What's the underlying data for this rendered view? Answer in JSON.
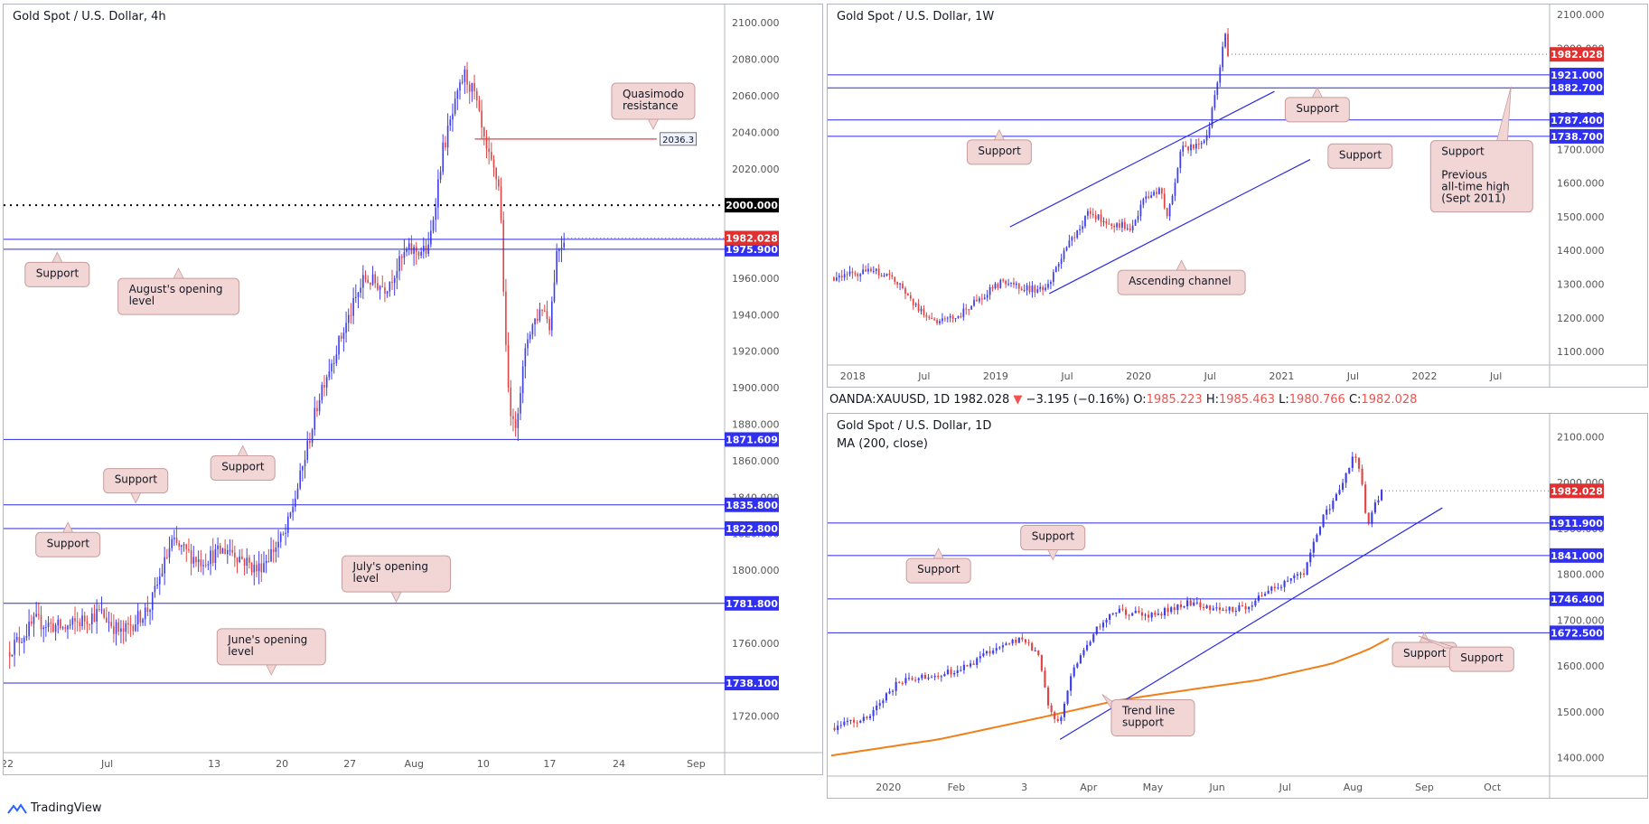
{
  "colors": {
    "up": "#3f3fe8",
    "down": "#e04545",
    "level": "#2a2ae0",
    "tagLevel": "#3030f0",
    "tagPrice": "#e03030",
    "tagBlack": "#000000",
    "callout": "#f2d6d6",
    "calloutBorder": "#c79c9c",
    "ma": "#f07f1a",
    "axisText": "#555555",
    "gridLine": "#e8e8e8"
  },
  "footer": {
    "brand": "TradingView",
    "icon": "tradingview-logo-icon"
  },
  "ohlc": {
    "symbol": "OANDA:XAUUSD, 1D",
    "last": "1982.028",
    "arrow": "▼",
    "change": "−3.195 (−0.16%)",
    "o_label": "O:",
    "o": "1985.223",
    "h_label": "H:",
    "h": "1985.463",
    "l_label": "L:",
    "l": "1980.766",
    "c_label": "C:",
    "c": "1982.028"
  },
  "charts": [
    {
      "id": "h4",
      "title": "Gold Spot / U.S. Dollar, 4h",
      "subtitle": "",
      "ylim": [
        1700,
        2110
      ],
      "yticks": [
        1720,
        1740,
        1760,
        1780,
        1800,
        1820,
        1840,
        1860,
        1880,
        1900,
        1920,
        1940,
        1960,
        1980,
        2000,
        2020,
        2040,
        2060,
        2080,
        2100
      ],
      "xticks": [
        {
          "label": "22",
          "f": 0.0
        },
        {
          "label": "Jul",
          "f": 0.14
        },
        {
          "label": "13",
          "f": 0.29
        },
        {
          "label": "20",
          "f": 0.385
        },
        {
          "label": "27",
          "f": 0.48
        },
        {
          "label": "Aug",
          "f": 0.57
        },
        {
          "label": "10",
          "f": 0.667
        },
        {
          "label": "17",
          "f": 0.76
        },
        {
          "label": "24",
          "f": 0.857
        },
        {
          "label": "Sep",
          "f": 0.965
        }
      ],
      "path": [
        {
          "f": 0.0,
          "v": 1755
        },
        {
          "f": 0.04,
          "v": 1772
        },
        {
          "f": 0.08,
          "v": 1768
        },
        {
          "f": 0.13,
          "v": 1777
        },
        {
          "f": 0.16,
          "v": 1765
        },
        {
          "f": 0.2,
          "v": 1780
        },
        {
          "f": 0.23,
          "v": 1815
        },
        {
          "f": 0.27,
          "v": 1805
        },
        {
          "f": 0.31,
          "v": 1812
        },
        {
          "f": 0.35,
          "v": 1800
        },
        {
          "f": 0.39,
          "v": 1820
        },
        {
          "f": 0.41,
          "v": 1850
        },
        {
          "f": 0.44,
          "v": 1900
        },
        {
          "f": 0.48,
          "v": 1940
        },
        {
          "f": 0.5,
          "v": 1960
        },
        {
          "f": 0.53,
          "v": 1955
        },
        {
          "f": 0.56,
          "v": 1975
        },
        {
          "f": 0.59,
          "v": 1975
        },
        {
          "f": 0.61,
          "v": 2030
        },
        {
          "f": 0.64,
          "v": 2072
        },
        {
          "f": 0.655,
          "v": 2060
        },
        {
          "f": 0.67,
          "v": 2030
        },
        {
          "f": 0.69,
          "v": 2010
        },
        {
          "f": 0.7,
          "v": 1905
        },
        {
          "f": 0.71,
          "v": 1875
        },
        {
          "f": 0.73,
          "v": 1930
        },
        {
          "f": 0.75,
          "v": 1945
        },
        {
          "f": 0.76,
          "v": 1935
        },
        {
          "f": 0.77,
          "v": 1975
        },
        {
          "f": 0.78,
          "v": 1982
        }
      ],
      "levels": [
        {
          "v": 1981.3,
          "tag": "1981.300",
          "kind": "level",
          "from": 0.0
        },
        {
          "v": 1975.9,
          "tag": "1975.900",
          "kind": "level",
          "from": 0.0
        },
        {
          "v": 1871.609,
          "tag": "1871.609",
          "kind": "level",
          "from": 0.0
        },
        {
          "v": 1835.8,
          "tag": "1835.800",
          "kind": "level",
          "from": 0.0
        },
        {
          "v": 1822.8,
          "tag": "1822.800",
          "kind": "level",
          "from": 0.0
        },
        {
          "v": 1781.8,
          "tag": "1781.800",
          "kind": "level",
          "from": 0.0
        },
        {
          "v": 1738.1,
          "tag": "1738.100",
          "kind": "level",
          "from": 0.0
        },
        {
          "v": 2036.3,
          "tag": "",
          "kind": "red",
          "from": 0.655,
          "to": 0.91
        },
        {
          "v": 2000,
          "tag": "2000.000",
          "kind": "dotted",
          "from": 0.0
        }
      ],
      "price": {
        "v": 1982.028,
        "tag": "1982.028"
      },
      "smallTag": {
        "label": "2036.3",
        "v": 2036.3,
        "f": 0.94
      },
      "callouts": [
        {
          "text": [
            "Support"
          ],
          "f": 0.07,
          "v": 1962,
          "ptr": "up"
        },
        {
          "text": [
            "August's opening",
            "level"
          ],
          "f": 0.24,
          "v": 1950,
          "ptr": "up"
        },
        {
          "text": [
            "Quasimodo",
            "resistance"
          ],
          "f": 0.905,
          "v": 2057,
          "ptr": "down"
        },
        {
          "text": [
            "Support"
          ],
          "f": 0.33,
          "v": 1856,
          "ptr": "up"
        },
        {
          "text": [
            "Support"
          ],
          "f": 0.18,
          "v": 1849,
          "ptr": "down"
        },
        {
          "text": [
            "Support"
          ],
          "f": 0.085,
          "v": 1814,
          "ptr": "up"
        },
        {
          "text": [
            "July's opening",
            "level"
          ],
          "f": 0.545,
          "v": 1798,
          "ptr": "down"
        },
        {
          "text": [
            "June's opening",
            "level"
          ],
          "f": 0.37,
          "v": 1758,
          "ptr": "down"
        }
      ]
    },
    {
      "id": "w1",
      "title": "Gold Spot / U.S. Dollar, 1W",
      "subtitle": "",
      "ylim": [
        1060,
        2130
      ],
      "yticks": [
        1100,
        1200,
        1300,
        1400,
        1500,
        1600,
        1700,
        1800,
        1900,
        2000,
        2100
      ],
      "xticks": [
        {
          "label": "2018",
          "f": 0.03
        },
        {
          "label": "Jul",
          "f": 0.13
        },
        {
          "label": "2019",
          "f": 0.23
        },
        {
          "label": "Jul",
          "f": 0.33
        },
        {
          "label": "2020",
          "f": 0.43
        },
        {
          "label": "Jul",
          "f": 0.53
        },
        {
          "label": "2021",
          "f": 0.63
        },
        {
          "label": "Jul",
          "f": 0.73
        },
        {
          "label": "2022",
          "f": 0.83
        },
        {
          "label": "Jul",
          "f": 0.93
        }
      ],
      "path": [
        {
          "f": 0.0,
          "v": 1320
        },
        {
          "f": 0.03,
          "v": 1330
        },
        {
          "f": 0.06,
          "v": 1340
        },
        {
          "f": 0.09,
          "v": 1310
        },
        {
          "f": 0.12,
          "v": 1230
        },
        {
          "f": 0.15,
          "v": 1185
        },
        {
          "f": 0.18,
          "v": 1210
        },
        {
          "f": 0.21,
          "v": 1260
        },
        {
          "f": 0.24,
          "v": 1310
        },
        {
          "f": 0.27,
          "v": 1290
        },
        {
          "f": 0.3,
          "v": 1280
        },
        {
          "f": 0.33,
          "v": 1410
        },
        {
          "f": 0.36,
          "v": 1510
        },
        {
          "f": 0.39,
          "v": 1480
        },
        {
          "f": 0.42,
          "v": 1470
        },
        {
          "f": 0.44,
          "v": 1560
        },
        {
          "f": 0.46,
          "v": 1580
        },
        {
          "f": 0.47,
          "v": 1500
        },
        {
          "f": 0.49,
          "v": 1700
        },
        {
          "f": 0.52,
          "v": 1720
        },
        {
          "f": 0.53,
          "v": 1780
        },
        {
          "f": 0.545,
          "v": 1960
        },
        {
          "f": 0.55,
          "v": 2060
        },
        {
          "f": 0.555,
          "v": 1982
        }
      ],
      "levels": [
        {
          "v": 1921,
          "tag": "1921.000",
          "kind": "level",
          "from": 0.0
        },
        {
          "v": 1882.7,
          "tag": "1882.700",
          "kind": "level",
          "from": 0.0
        },
        {
          "v": 1787.4,
          "tag": "1787.400",
          "kind": "level",
          "from": 0.0
        },
        {
          "v": 1738.7,
          "tag": "1738.700",
          "kind": "level",
          "from": 0.0
        }
      ],
      "price": {
        "v": 1982.028,
        "tag": "1982.028"
      },
      "trendlines": [
        {
          "f1": 0.25,
          "v1": 1470,
          "f2": 0.62,
          "v2": 1872,
          "color": "#2a2ae0"
        },
        {
          "f1": 0.305,
          "v1": 1272,
          "f2": 0.67,
          "v2": 1670,
          "color": "#2a2ae0"
        }
      ],
      "callouts": [
        {
          "text": [
            "Support"
          ],
          "f": 0.68,
          "v": 1818,
          "ptr": "up"
        },
        {
          "text": [
            "Support"
          ],
          "f": 0.235,
          "v": 1692,
          "ptr": "up"
        },
        {
          "text": [
            "Support"
          ],
          "f": 0.74,
          "v": 1680,
          "ptr": "none"
        },
        {
          "text": [
            "Support",
            "",
            "Previous",
            "all-time high",
            "(Sept 2011)"
          ],
          "f": 0.91,
          "v": 1620,
          "ptr": "upright"
        },
        {
          "text": [
            "Ascending channel"
          ],
          "f": 0.49,
          "v": 1305,
          "ptr": "up"
        }
      ]
    },
    {
      "id": "d1",
      "title": "Gold Spot / U.S. Dollar, 1D",
      "subtitle": "MA (200, close)",
      "ylim": [
        1360,
        2150
      ],
      "yticks": [
        1400,
        1500,
        1600,
        1700,
        1800,
        1900,
        2000,
        2100
      ],
      "xticks": [
        {
          "label": "2020",
          "f": 0.08
        },
        {
          "label": "Feb",
          "f": 0.175
        },
        {
          "label": "3",
          "f": 0.27
        },
        {
          "label": "Apr",
          "f": 0.36
        },
        {
          "label": "May",
          "f": 0.45
        },
        {
          "label": "Jun",
          "f": 0.54
        },
        {
          "label": "Jul",
          "f": 0.635
        },
        {
          "label": "Aug",
          "f": 0.73
        },
        {
          "label": "Sep",
          "f": 0.83
        },
        {
          "label": "Oct",
          "f": 0.925
        }
      ],
      "path": [
        {
          "f": 0.0,
          "v": 1465
        },
        {
          "f": 0.05,
          "v": 1485
        },
        {
          "f": 0.09,
          "v": 1560
        },
        {
          "f": 0.12,
          "v": 1575
        },
        {
          "f": 0.18,
          "v": 1590
        },
        {
          "f": 0.23,
          "v": 1640
        },
        {
          "f": 0.27,
          "v": 1660
        },
        {
          "f": 0.29,
          "v": 1620
        },
        {
          "f": 0.305,
          "v": 1500
        },
        {
          "f": 0.32,
          "v": 1480
        },
        {
          "f": 0.34,
          "v": 1600
        },
        {
          "f": 0.37,
          "v": 1680
        },
        {
          "f": 0.4,
          "v": 1720
        },
        {
          "f": 0.45,
          "v": 1710
        },
        {
          "f": 0.5,
          "v": 1740
        },
        {
          "f": 0.55,
          "v": 1720
        },
        {
          "f": 0.58,
          "v": 1730
        },
        {
          "f": 0.62,
          "v": 1770
        },
        {
          "f": 0.66,
          "v": 1800
        },
        {
          "f": 0.69,
          "v": 1930
        },
        {
          "f": 0.71,
          "v": 1980
        },
        {
          "f": 0.73,
          "v": 2060
        },
        {
          "f": 0.74,
          "v": 2030
        },
        {
          "f": 0.75,
          "v": 1905
        },
        {
          "f": 0.76,
          "v": 1950
        },
        {
          "f": 0.77,
          "v": 1982
        }
      ],
      "ma": [
        {
          "f": 0.0,
          "v": 1405
        },
        {
          "f": 0.15,
          "v": 1440
        },
        {
          "f": 0.3,
          "v": 1490
        },
        {
          "f": 0.4,
          "v": 1525
        },
        {
          "f": 0.5,
          "v": 1548
        },
        {
          "f": 0.6,
          "v": 1570
        },
        {
          "f": 0.7,
          "v": 1605
        },
        {
          "f": 0.75,
          "v": 1635
        },
        {
          "f": 0.78,
          "v": 1660
        }
      ],
      "levels": [
        {
          "v": 1911.9,
          "tag": "1911.900",
          "kind": "level",
          "from": 0.0
        },
        {
          "v": 1841,
          "tag": "1841.000",
          "kind": "level",
          "from": 0.0
        },
        {
          "v": 1746.4,
          "tag": "1746.400",
          "kind": "level",
          "from": 0.0
        },
        {
          "v": 1672.5,
          "tag": "1672.500",
          "kind": "level",
          "from": 0.0
        }
      ],
      "price": {
        "v": 1982.028,
        "tag": "1982.028"
      },
      "trendlines": [
        {
          "f1": 0.32,
          "v1": 1440,
          "f2": 0.855,
          "v2": 1945,
          "color": "#2a2ae0"
        }
      ],
      "callouts": [
        {
          "text": [
            "Support"
          ],
          "f": 0.31,
          "v": 1880,
          "ptr": "down"
        },
        {
          "text": [
            "Support"
          ],
          "f": 0.15,
          "v": 1808,
          "ptr": "up"
        },
        {
          "text": [
            "Support"
          ],
          "f": 0.83,
          "v": 1625,
          "ptr": "up"
        },
        {
          "text": [
            "Support"
          ],
          "f": 0.91,
          "v": 1615,
          "ptr": "upright2"
        },
        {
          "text": [
            "Trend line",
            "support"
          ],
          "f": 0.45,
          "v": 1487,
          "ptr": "upleft"
        }
      ]
    }
  ]
}
